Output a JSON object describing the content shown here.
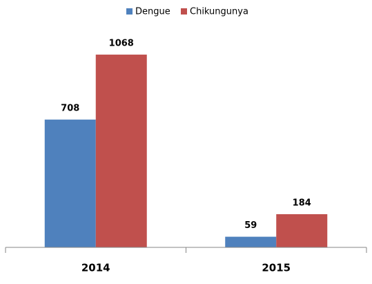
{
  "chart_data": {
    "type": "bar",
    "categories": [
      "2014",
      "2015"
    ],
    "series": [
      {
        "name": "Dengue",
        "color": "#4f81bd",
        "values": [
          708,
          59
        ]
      },
      {
        "name": "Chikungunya",
        "color": "#c0504d",
        "values": [
          1068,
          184
        ]
      }
    ],
    "legend": "top"
  }
}
